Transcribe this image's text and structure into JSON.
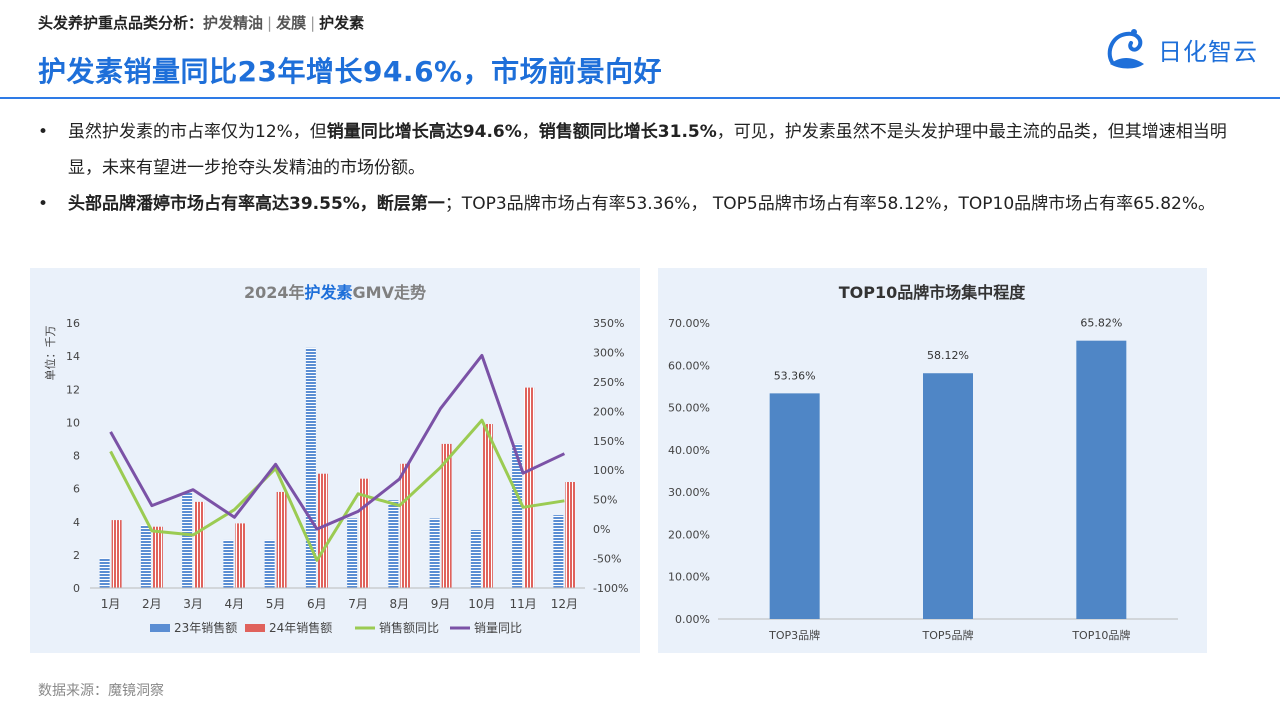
{
  "header": {
    "crumb_prefix": "头发养护重点品类分析：",
    "crumb_items": [
      "护发精油",
      "发膜"
    ],
    "crumb_active": "护发素",
    "title": "护发素销量同比23年增长94.6%，市场前景向好",
    "logo_text": "日化智云"
  },
  "bullets": [
    {
      "marker": "•",
      "p1": "虽然护发素的市占率仅为12%，但",
      "b1": "销量同比增长高达94.6%",
      "p2": "，",
      "b2": "销售额同比增长31.5%",
      "p3": "，可见，护发素虽然不是头发护理中最主流的品类，但其增速相当明显，未来有望进一步抢夺头发精油的市场份额。"
    },
    {
      "marker": "•",
      "b1": "头部品牌潘婷市场占有率高达39.55%，断层第一",
      "p1": "；TOP3品牌市场占有率53.36%， TOP5品牌市场占有率58.12%，TOP10品牌市场占有率65.82%。"
    }
  ],
  "source": "数据来源：魔镜洞察",
  "colors": {
    "accent": "#1E6FD9",
    "bar23": "#5B8ED3",
    "bar24": "#E0625C",
    "line_sales": "#9BCB52",
    "line_volume": "#7B52A6",
    "bar_top": "#4F86C6",
    "panel_bg": "#EAF1FA"
  },
  "chart_data": [
    {
      "type": "bar",
      "title_parts": [
        "2024年",
        "护发素",
        "GMV走势"
      ],
      "ylabel": "单位：千万",
      "categories": [
        "1月",
        "2月",
        "3月",
        "4月",
        "5月",
        "6月",
        "7月",
        "8月",
        "9月",
        "10月",
        "11月",
        "12月"
      ],
      "ylim": [
        0,
        16
      ],
      "y_ticks": [
        "0",
        "2",
        "4",
        "6",
        "8",
        "10",
        "12",
        "14",
        "16"
      ],
      "y2lim": [
        -100,
        350
      ],
      "y2_ticks": [
        "-100%",
        "-50%",
        "0%",
        "50%",
        "100%",
        "150%",
        "200%",
        "250%",
        "300%",
        "350%"
      ],
      "series": [
        {
          "name": "23年销售额",
          "type": "bar",
          "axis": "left",
          "values": [
            1.8,
            3.8,
            5.8,
            2.9,
            2.9,
            14.5,
            4.2,
            5.3,
            4.2,
            3.5,
            8.7,
            4.4
          ]
        },
        {
          "name": "24年销售额",
          "type": "bar",
          "axis": "left",
          "values": [
            4.1,
            3.7,
            5.2,
            3.9,
            5.8,
            6.9,
            6.6,
            7.5,
            8.7,
            9.9,
            12.1,
            6.4
          ]
        },
        {
          "name": "销售额同比",
          "type": "line",
          "axis": "right",
          "values": [
            132,
            -3,
            -10,
            33,
            103,
            -53,
            60,
            40,
            105,
            185,
            37,
            48
          ]
        },
        {
          "name": "销量同比",
          "type": "line",
          "axis": "right",
          "values": [
            165,
            40,
            67,
            20,
            110,
            0,
            30,
            85,
            205,
            295,
            95,
            128
          ]
        }
      ],
      "grid": "none",
      "legend": "bottom"
    },
    {
      "type": "bar",
      "title": "TOP10品牌市场集中程度",
      "categories": [
        "TOP3品牌",
        "TOP5品牌",
        "TOP10品牌"
      ],
      "values": [
        53.36,
        58.12,
        65.82
      ],
      "value_labels": [
        "53.36%",
        "58.12%",
        "65.82%"
      ],
      "ylim": [
        0,
        70
      ],
      "y_ticks": [
        "0.00%",
        "10.00%",
        "20.00%",
        "30.00%",
        "40.00%",
        "50.00%",
        "60.00%",
        "70.00%"
      ],
      "grid": "none",
      "legend": "none"
    }
  ]
}
